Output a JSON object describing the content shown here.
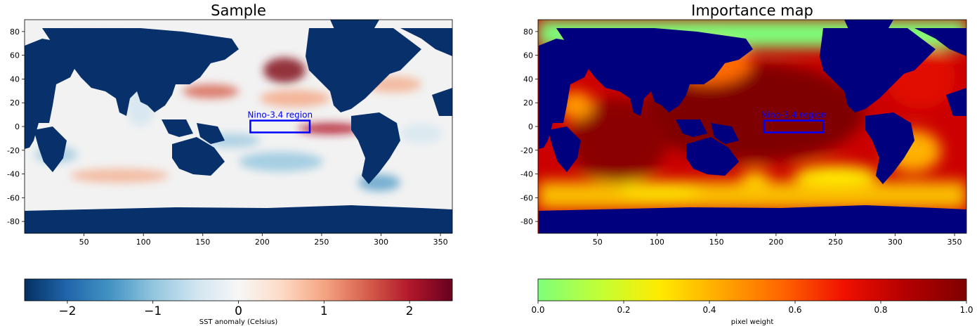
{
  "chart_data": [
    {
      "type": "heatmap",
      "title": "Sample",
      "xlim": [
        0,
        360
      ],
      "ylim": [
        -90,
        90
      ],
      "xticks": [
        50,
        100,
        150,
        200,
        250,
        300,
        350
      ],
      "yticks": [
        80,
        60,
        40,
        20,
        0,
        -20,
        -40,
        -60,
        -80
      ],
      "land_color": "#08306b",
      "annotation": {
        "text": "Nino-3.4 region",
        "box_lon": [
          190,
          240
        ],
        "box_lat": [
          -5,
          5
        ],
        "color": "#0000ff"
      },
      "colormap": "RdBu_r",
      "colorbar": {
        "label": "SST anomaly (Celsius)",
        "range": [
          -2.5,
          2.5
        ],
        "ticks": [
          "−2",
          "−1",
          "0",
          "1",
          "2"
        ],
        "tick_values": [
          -2,
          -1,
          0,
          1,
          2
        ],
        "stops": [
          "#053061",
          "#2166ac",
          "#4393c3",
          "#92c5de",
          "#d1e5f0",
          "#f7f7f7",
          "#fddbc7",
          "#f4a582",
          "#d6604d",
          "#b2182b",
          "#67001f"
        ]
      }
    },
    {
      "type": "heatmap",
      "title": "Importance map",
      "xlim": [
        0,
        360
      ],
      "ylim": [
        -90,
        90
      ],
      "xticks": [
        50,
        100,
        150,
        200,
        250,
        300,
        350
      ],
      "yticks": [
        80,
        60,
        40,
        20,
        0,
        -20,
        -40,
        -60,
        -80
      ],
      "land_color": "#00007f",
      "annotation": {
        "text": "Nino-3.4 region",
        "box_lon": [
          190,
          240
        ],
        "box_lat": [
          -5,
          5
        ],
        "color": "#0000ff"
      },
      "colormap": "jet (upper half)",
      "colorbar": {
        "label": "pixel weight",
        "range": [
          0,
          1
        ],
        "ticks": [
          "0.0",
          "0.2",
          "0.4",
          "0.6",
          "0.8",
          "1.0"
        ],
        "tick_values": [
          0,
          0.2,
          0.4,
          0.6,
          0.8,
          1.0
        ],
        "stops": [
          "#7dff7a",
          "#c1ff36",
          "#ffea00",
          "#ffa700",
          "#ff6400",
          "#f01000",
          "#b40000",
          "#7f0000"
        ]
      }
    }
  ]
}
